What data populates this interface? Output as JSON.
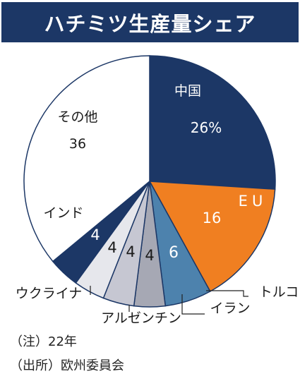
{
  "title": "ハチミツ生産量シェア",
  "notes": {
    "year": "（注）22年",
    "source": "（出所）欧州委員会"
  },
  "colors": {
    "navy": "#1c3766",
    "orange": "#f07f21",
    "steel": "#4d82ad",
    "gray_dark": "#a6a8b4",
    "gray_mid": "#c6c7d2",
    "gray_light": "#e6e7ec",
    "white": "#ffffff",
    "outline": "#1c3766"
  },
  "chart_data": {
    "type": "pie",
    "title": "ハチミツ生産量シェア",
    "unit": "%",
    "slices": [
      {
        "label": "中国",
        "value": 26,
        "value_label": "26%",
        "color": "#1c3766",
        "label_color": "#ffffff"
      },
      {
        "label": "EU",
        "value": 16,
        "value_label": "16",
        "color": "#f07f21",
        "label_color": "#ffffff"
      },
      {
        "label": "トルコ",
        "value": 6,
        "value_label": "6",
        "color": "#4d82ad",
        "label_color": "#ffffff"
      },
      {
        "label": "イラン",
        "value": 4,
        "value_label": "4",
        "color": "#a6a8b4",
        "label_color": "#1a1a1a"
      },
      {
        "label": "アルゼンチン",
        "value": 4,
        "value_label": "4",
        "color": "#c6c7d2",
        "label_color": "#1a1a1a"
      },
      {
        "label": "ウクライナ",
        "value": 4,
        "value_label": "4",
        "color": "#e6e7ec",
        "label_color": "#1a1a1a"
      },
      {
        "label": "インド",
        "value": 4,
        "value_label": "4",
        "color": "#1c3766",
        "label_color": "#ffffff"
      },
      {
        "label": "その他",
        "value": 36,
        "value_label": "36",
        "color": "#ffffff",
        "label_color": "#1a1a1a"
      }
    ]
  }
}
